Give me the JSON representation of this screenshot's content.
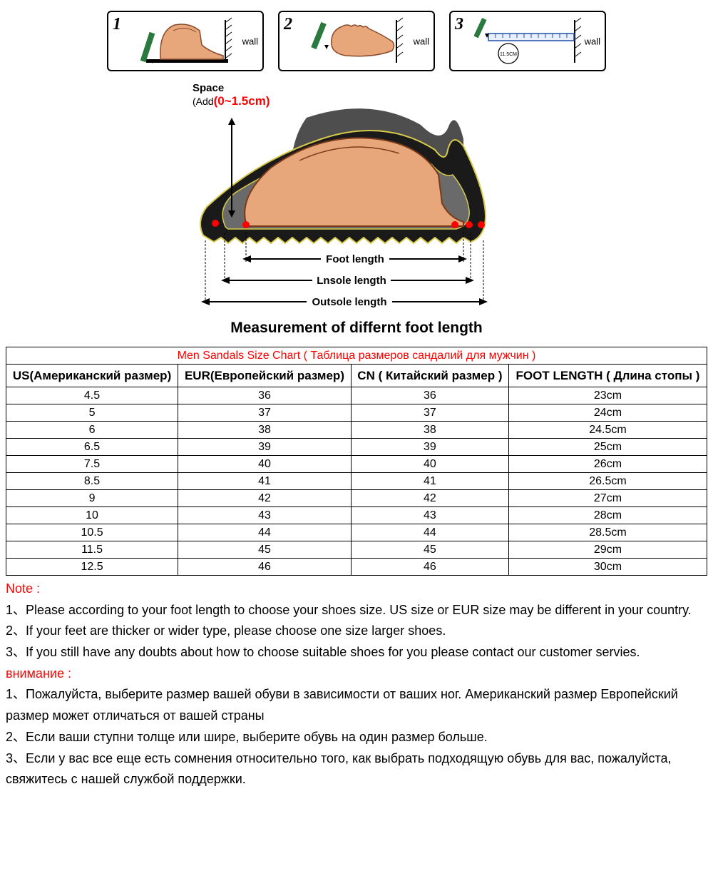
{
  "steps": {
    "items": [
      {
        "num": "1",
        "wall": "wall"
      },
      {
        "num": "2",
        "wall": "wall"
      },
      {
        "num": "3",
        "wall": "wall",
        "circle": "11.5CM"
      }
    ]
  },
  "diagram": {
    "space_label": "Space",
    "space_add": "(Add",
    "space_range": "(0~1.5cm)",
    "foot_length": "Foot length",
    "insole_length": "Lnsole length",
    "outsole_length": "Outsole length",
    "caption": "Measurement of differnt foot length"
  },
  "table": {
    "title": "Men Sandals Size Chart ( Таблица размеров сандалий для мужчин )",
    "columns": [
      "US(Американский размер)",
      "EUR(Европейский размер)",
      "CN ( Китайский размер )",
      "FOOT LENGTH ( Длина стопы )"
    ],
    "rows": [
      [
        "4.5",
        "36",
        "36",
        "23cm"
      ],
      [
        "5",
        "37",
        "37",
        "24cm"
      ],
      [
        "6",
        "38",
        "38",
        "24.5cm"
      ],
      [
        "6.5",
        "39",
        "39",
        "25cm"
      ],
      [
        "7.5",
        "40",
        "40",
        "26cm"
      ],
      [
        "8.5",
        "41",
        "41",
        "26.5cm"
      ],
      [
        "9",
        "42",
        "42",
        "27cm"
      ],
      [
        "10",
        "43",
        "43",
        "28cm"
      ],
      [
        "10.5",
        "44",
        "44",
        "28.5cm"
      ],
      [
        "11.5",
        "45",
        "45",
        "29cm"
      ],
      [
        "12.5",
        "46",
        "46",
        "30cm"
      ]
    ]
  },
  "notes": {
    "note_hd": "Note :",
    "note1": "1、Please according to your foot length to choose your shoes size. US size or EUR size may be different in your country.",
    "note2": "2、If your feet are thicker or wider type, please choose one size larger shoes.",
    "note3": "3、If you still have any doubts about how to choose suitable shoes for you please contact our customer servies.",
    "vnim_hd": "внимание :",
    "vnim1": "1、Пожалуйста, выберите размер вашей обуви в зависимости от ваших ног.  Американский размер Европейский размер может отличаться от вашей страны",
    "vnim2": "2、Если ваши ступни толще или шире, выберите обувь на один размер больше.",
    "vnim3": "3、Если у вас все еще есть сомнения относительно того, как выбрать подходящую обувь для вас, пожалуйста, свяжитесь с нашей службой поддержки."
  },
  "colors": {
    "skin": "#e8a77a",
    "skin_dark": "#c27a4f",
    "pencil_green": "#2a7a3f",
    "sole_black": "#1a1a1a",
    "shadow": "#3b3b3b",
    "red": "#ff0000",
    "ruler_blue": "#1f4fa8"
  }
}
